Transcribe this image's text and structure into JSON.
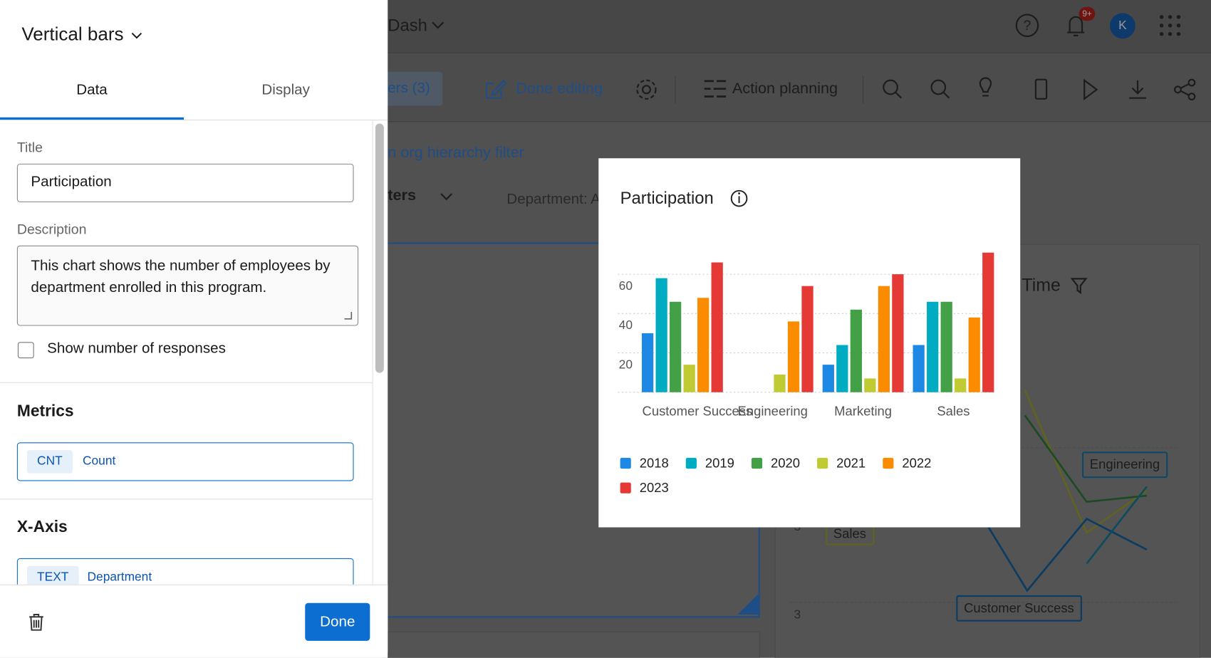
{
  "header": {
    "dashboard": "Dash",
    "badge": "9+",
    "avatar": "K"
  },
  "toolbar": {
    "filters": "ers (3)",
    "done_editing": "Done editing",
    "action_planning": "Action planning"
  },
  "background": {
    "org_filter": "n org hierarchy filter",
    "filters": "ters",
    "department": "Department: A",
    "widget_title": "Time",
    "labels": [
      "Engineering",
      "Sales",
      "Customer Success"
    ],
    "axis_ticks": [
      "3",
      "3"
    ]
  },
  "panel": {
    "widget_type": "Vertical bars",
    "tabs": [
      "Data",
      "Display"
    ],
    "title_label": "Title",
    "title_value": "Participation",
    "description_label": "Description",
    "description_value": "This chart shows the number of employees by department enrolled in this program.",
    "show_responses": "Show number of responses",
    "metrics_heading": "Metrics",
    "metric_tag": "CNT",
    "metric_name": "Count",
    "xaxis_heading": "X-Axis",
    "xaxis_tag": "TEXT",
    "xaxis_name": "Department",
    "done": "Done"
  },
  "chart_data": {
    "type": "bar",
    "title": "Participation",
    "categories": [
      "Customer Success",
      "Engineering",
      "Marketing",
      "Sales"
    ],
    "series": [
      {
        "name": "2018",
        "color": "#1e88e5",
        "values": [
          30,
          null,
          14,
          24
        ]
      },
      {
        "name": "2019",
        "color": "#00acc1",
        "values": [
          58,
          null,
          24,
          46
        ]
      },
      {
        "name": "2020",
        "color": "#43a047",
        "values": [
          46,
          null,
          42,
          46
        ]
      },
      {
        "name": "2021",
        "color": "#c0ca33",
        "values": [
          14,
          9,
          7,
          7
        ]
      },
      {
        "name": "2022",
        "color": "#fb8c00",
        "values": [
          48,
          36,
          54,
          38
        ]
      },
      {
        "name": "2023",
        "color": "#e53935",
        "values": [
          66,
          54,
          60,
          71
        ]
      }
    ],
    "ylim": [
      0,
      75
    ],
    "yticks": [
      20,
      40,
      60
    ],
    "grid": true
  }
}
